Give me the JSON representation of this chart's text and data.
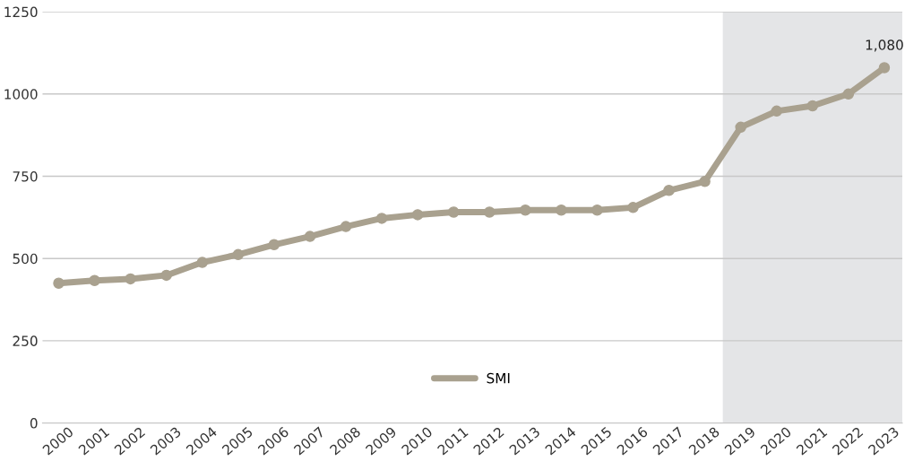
{
  "chart_data": {
    "type": "line",
    "x": [
      2000,
      2001,
      2002,
      2003,
      2004,
      2005,
      2006,
      2007,
      2008,
      2009,
      2010,
      2011,
      2012,
      2013,
      2014,
      2015,
      2016,
      2017,
      2018,
      2019,
      2020,
      2021,
      2022,
      2023
    ],
    "series": [
      {
        "name": "SMI",
        "color": "#a9a18f",
        "values": [
          425,
          433,
          438,
          449,
          488,
          512,
          542,
          567,
          597,
          622,
          633,
          641,
          641,
          647,
          647,
          647,
          655,
          707,
          734,
          899,
          948,
          964,
          1000,
          1080
        ],
        "value_labels": [
          null,
          null,
          null,
          null,
          null,
          null,
          null,
          null,
          null,
          null,
          null,
          null,
          null,
          null,
          null,
          null,
          null,
          null,
          null,
          null,
          null,
          null,
          null,
          "1,080"
        ]
      }
    ],
    "xlim": [
      1999.55,
      2023.5
    ],
    "xticks": [
      2000,
      2001,
      2002,
      2003,
      2004,
      2005,
      2006,
      2007,
      2008,
      2009,
      2010,
      2011,
      2012,
      2013,
      2014,
      2015,
      2016,
      2017,
      2018,
      2019,
      2020,
      2021,
      2022,
      2023
    ],
    "ylim": [
      0,
      1250
    ],
    "yticks": [
      0,
      250,
      500,
      750,
      1000,
      1250
    ],
    "bands": [
      {
        "axis": "x",
        "from": 2018.5,
        "to": 2023.5,
        "color": "#e4e5e7"
      }
    ],
    "grid": "y",
    "legend": "bottom",
    "marker": "circle",
    "line_style": "solid"
  }
}
